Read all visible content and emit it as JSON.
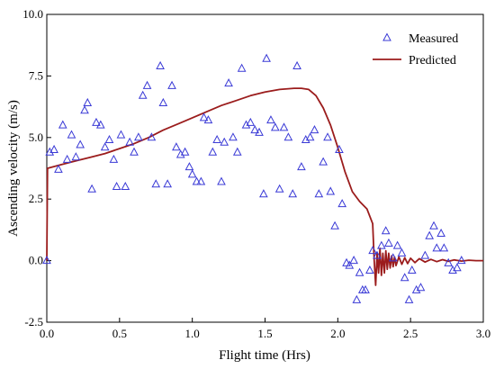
{
  "chart_data": {
    "type": "scatter",
    "title": "",
    "xlabel": "Flight time (Hrs)",
    "ylabel": "Ascending velocity (m/s)",
    "xlim": [
      0.0,
      3.0
    ],
    "ylim": [
      -2.5,
      10.0
    ],
    "x_ticks": [
      "0.0",
      "0.5",
      "1.0",
      "1.5",
      "2.0",
      "2.5",
      "3.0"
    ],
    "y_ticks": [
      "-2.5",
      "0.0",
      "2.5",
      "5.0",
      "7.5",
      "10.0"
    ],
    "legend_position": "top-right",
    "series": [
      {
        "name": "Measured",
        "kind": "markers",
        "marker": "open-triangle",
        "color": "#3a3ad6",
        "points": [
          [
            0.0,
            0.0
          ],
          [
            0.02,
            4.4
          ],
          [
            0.05,
            4.5
          ],
          [
            0.08,
            3.7
          ],
          [
            0.11,
            5.5
          ],
          [
            0.14,
            4.1
          ],
          [
            0.17,
            5.1
          ],
          [
            0.2,
            4.2
          ],
          [
            0.23,
            4.7
          ],
          [
            0.26,
            6.1
          ],
          [
            0.28,
            6.4
          ],
          [
            0.31,
            2.9
          ],
          [
            0.34,
            5.6
          ],
          [
            0.37,
            5.5
          ],
          [
            0.4,
            4.6
          ],
          [
            0.43,
            4.9
          ],
          [
            0.46,
            4.1
          ],
          [
            0.48,
            3.0
          ],
          [
            0.51,
            5.1
          ],
          [
            0.54,
            3.0
          ],
          [
            0.57,
            4.8
          ],
          [
            0.6,
            4.4
          ],
          [
            0.63,
            5.0
          ],
          [
            0.66,
            6.7
          ],
          [
            0.69,
            7.1
          ],
          [
            0.72,
            5.0
          ],
          [
            0.75,
            3.1
          ],
          [
            0.78,
            7.9
          ],
          [
            0.8,
            6.4
          ],
          [
            0.83,
            3.1
          ],
          [
            0.86,
            7.1
          ],
          [
            0.89,
            4.6
          ],
          [
            0.92,
            4.3
          ],
          [
            0.95,
            4.4
          ],
          [
            0.98,
            3.8
          ],
          [
            1.0,
            3.5
          ],
          [
            1.03,
            3.2
          ],
          [
            1.06,
            3.2
          ],
          [
            1.08,
            5.8
          ],
          [
            1.11,
            5.7
          ],
          [
            1.14,
            4.4
          ],
          [
            1.17,
            4.9
          ],
          [
            1.2,
            3.2
          ],
          [
            1.22,
            4.8
          ],
          [
            1.25,
            7.2
          ],
          [
            1.28,
            5.0
          ],
          [
            1.31,
            4.4
          ],
          [
            1.34,
            7.8
          ],
          [
            1.37,
            5.5
          ],
          [
            1.4,
            5.6
          ],
          [
            1.43,
            5.3
          ],
          [
            1.46,
            5.2
          ],
          [
            1.49,
            2.7
          ],
          [
            1.51,
            8.2
          ],
          [
            1.54,
            5.7
          ],
          [
            1.57,
            5.4
          ],
          [
            1.6,
            2.9
          ],
          [
            1.63,
            5.4
          ],
          [
            1.66,
            5.0
          ],
          [
            1.69,
            2.7
          ],
          [
            1.72,
            7.9
          ],
          [
            1.75,
            3.8
          ],
          [
            1.78,
            4.9
          ],
          [
            1.81,
            5.0
          ],
          [
            1.84,
            5.3
          ],
          [
            1.87,
            2.7
          ],
          [
            1.9,
            4.0
          ],
          [
            1.93,
            5.0
          ],
          [
            1.95,
            2.8
          ],
          [
            1.98,
            1.4
          ],
          [
            2.01,
            4.5
          ],
          [
            2.03,
            2.3
          ],
          [
            2.06,
            -0.1
          ],
          [
            2.08,
            -0.2
          ],
          [
            2.11,
            0.0
          ],
          [
            2.13,
            -1.6
          ],
          [
            2.15,
            -0.5
          ],
          [
            2.17,
            -1.2
          ],
          [
            2.19,
            -1.2
          ],
          [
            2.22,
            -0.4
          ],
          [
            2.24,
            0.4
          ],
          [
            2.27,
            0.2
          ],
          [
            2.3,
            0.6
          ],
          [
            2.33,
            1.2
          ],
          [
            2.35,
            0.7
          ],
          [
            2.38,
            0.1
          ],
          [
            2.41,
            0.6
          ],
          [
            2.44,
            0.3
          ],
          [
            2.46,
            -0.7
          ],
          [
            2.49,
            -1.6
          ],
          [
            2.51,
            -0.4
          ],
          [
            2.54,
            -1.2
          ],
          [
            2.57,
            -1.1
          ],
          [
            2.6,
            0.2
          ],
          [
            2.63,
            1.0
          ],
          [
            2.66,
            1.4
          ],
          [
            2.68,
            0.5
          ],
          [
            2.71,
            1.1
          ],
          [
            2.73,
            0.5
          ],
          [
            2.76,
            -0.1
          ],
          [
            2.79,
            -0.4
          ],
          [
            2.82,
            -0.3
          ],
          [
            2.85,
            0.0
          ]
        ]
      },
      {
        "name": "Predicted",
        "kind": "line",
        "color": "#9b1c1c",
        "points": [
          [
            0.0,
            0.0
          ],
          [
            0.005,
            3.75
          ],
          [
            0.1,
            3.9
          ],
          [
            0.2,
            4.05
          ],
          [
            0.3,
            4.2
          ],
          [
            0.4,
            4.35
          ],
          [
            0.5,
            4.55
          ],
          [
            0.6,
            4.75
          ],
          [
            0.7,
            5.0
          ],
          [
            0.8,
            5.3
          ],
          [
            0.9,
            5.55
          ],
          [
            1.0,
            5.8
          ],
          [
            1.1,
            6.05
          ],
          [
            1.2,
            6.3
          ],
          [
            1.3,
            6.5
          ],
          [
            1.4,
            6.7
          ],
          [
            1.5,
            6.85
          ],
          [
            1.6,
            6.95
          ],
          [
            1.7,
            7.0
          ],
          [
            1.75,
            7.0
          ],
          [
            1.8,
            6.95
          ],
          [
            1.85,
            6.7
          ],
          [
            1.9,
            6.2
          ],
          [
            1.95,
            5.5
          ],
          [
            2.0,
            4.6
          ],
          [
            2.05,
            3.6
          ],
          [
            2.1,
            2.8
          ],
          [
            2.15,
            2.4
          ],
          [
            2.2,
            2.1
          ],
          [
            2.24,
            1.5
          ],
          [
            2.25,
            0.0
          ],
          [
            2.26,
            -1.0
          ],
          [
            2.27,
            0.3
          ],
          [
            2.28,
            -0.5
          ],
          [
            2.29,
            0.5
          ],
          [
            2.3,
            -0.6
          ],
          [
            2.31,
            0.3
          ],
          [
            2.32,
            -0.5
          ],
          [
            2.33,
            0.4
          ],
          [
            2.34,
            -0.35
          ],
          [
            2.35,
            0.3
          ],
          [
            2.36,
            -0.3
          ],
          [
            2.37,
            0.2
          ],
          [
            2.38,
            -0.25
          ],
          [
            2.39,
            0.15
          ],
          [
            2.4,
            -0.2
          ],
          [
            2.42,
            0.15
          ],
          [
            2.44,
            -0.15
          ],
          [
            2.46,
            0.12
          ],
          [
            2.48,
            -0.12
          ],
          [
            2.5,
            0.1
          ],
          [
            2.53,
            -0.08
          ],
          [
            2.56,
            0.08
          ],
          [
            2.6,
            -0.06
          ],
          [
            2.64,
            0.05
          ],
          [
            2.68,
            -0.04
          ],
          [
            2.72,
            0.04
          ],
          [
            2.76,
            -0.03
          ],
          [
            2.8,
            0.03
          ],
          [
            2.85,
            -0.02
          ],
          [
            2.9,
            0.02
          ],
          [
            2.95,
            0.0
          ],
          [
            3.0,
            0.0
          ]
        ]
      }
    ]
  }
}
